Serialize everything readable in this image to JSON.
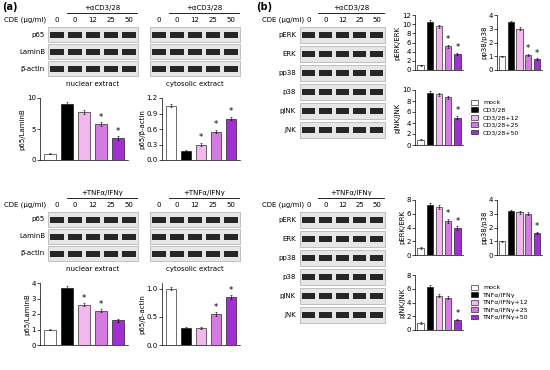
{
  "figure": {
    "panels": [
      {
        "label": "(a)",
        "groups": [
          {
            "treatment": "+αCD3/28",
            "dose_label": "CDE (μg/ml)",
            "rows": [
              "p65",
              "LaminB",
              "β-actin"
            ],
            "blots": [
              {
                "extract": "nuclear extract",
                "lanes": [
                  0,
                  0,
                  12,
                  25,
                  50
                ]
              },
              {
                "extract": "cytosolic extract",
                "lanes": [
                  0,
                  0,
                  12,
                  25,
                  50
                ]
              }
            ]
          },
          {
            "treatment": "+TNFα/IFNγ",
            "dose_label": "CDE (μg/ml)",
            "rows": [
              "p65",
              "LaminB",
              "β-actin"
            ],
            "blots": [
              {
                "extract": "nuclear extract",
                "lanes": [
                  0,
                  0,
                  12,
                  25,
                  50
                ]
              },
              {
                "extract": "cytosolic extract",
                "lanes": [
                  0,
                  0,
                  12,
                  25,
                  50
                ]
              }
            ]
          }
        ]
      },
      {
        "label": "(b)",
        "groups": [
          {
            "treatment": "+αCD3/28",
            "dose_label": "CDE (μg/ml)",
            "rows": [
              "pERK",
              "ERK",
              "pp38",
              "p38",
              "pJNK",
              "JNK"
            ],
            "blots": [
              {
                "lanes": [
                  0,
                  0,
                  12,
                  25,
                  50
                ]
              }
            ]
          },
          {
            "treatment": "+TNFα/IFNγ",
            "dose_label": "CDE (μg/ml)",
            "rows": [
              "pERK",
              "ERK",
              "pp38",
              "p38",
              "pJNK",
              "JNK"
            ],
            "blots": [
              {
                "lanes": [
                  0,
                  0,
                  12,
                  25,
                  50
                ]
              }
            ]
          }
        ]
      }
    ]
  },
  "chart_data": [
    {
      "type": "bar",
      "ylabel": "p65/LaminB",
      "categories": [
        null,
        null,
        null,
        null,
        null
      ],
      "values": [
        1,
        9,
        7.8,
        5.8,
        3.5
      ],
      "errors": [
        0.1,
        0.4,
        0.3,
        0.3,
        0.3
      ],
      "significance": [
        null,
        null,
        null,
        "*",
        "*"
      ],
      "colors": [
        "#ffffff",
        "#000000",
        "#f2b8ee",
        "#d57ae0",
        "#a030d0"
      ],
      "ylim": [
        0,
        10
      ],
      "yticks": [
        0,
        5,
        10
      ],
      "tick_labels": "y"
    },
    {
      "type": "bar",
      "ylabel": "p65/β-actin",
      "categories": [
        null,
        null,
        null,
        null,
        null
      ],
      "values": [
        1.05,
        0.18,
        0.3,
        0.55,
        0.8
      ],
      "errors": [
        0.03,
        0.02,
        0.03,
        0.03,
        0.03
      ],
      "significance": [
        null,
        null,
        "*",
        "*",
        "*"
      ],
      "colors": [
        "#ffffff",
        "#000000",
        "#f2b8ee",
        "#d57ae0",
        "#a030d0"
      ],
      "ylim": [
        0,
        1.2
      ],
      "yticks": [
        {
          "value": 0,
          "label": "0.0"
        },
        0.3,
        0.6,
        0.9,
        1.2
      ],
      "tick_labels": "y"
    },
    {
      "type": "bar",
      "ylabel": "p65/LaminB",
      "categories": [
        null,
        null,
        null,
        null,
        null
      ],
      "values": [
        1,
        3.7,
        2.6,
        2.2,
        1.6
      ],
      "errors": [
        0.05,
        0.1,
        0.1,
        0.1,
        0.1
      ],
      "significance": [
        null,
        null,
        "*",
        "*",
        null
      ],
      "colors": [
        "#ffffff",
        "#000000",
        "#f2b8ee",
        "#d57ae0",
        "#a030d0"
      ],
      "ylim": [
        0,
        4
      ],
      "yticks": [
        0,
        1,
        2,
        3,
        4
      ],
      "tick_labels": "y"
    },
    {
      "type": "bar",
      "ylabel": "p65/β-actin",
      "categories": [
        null,
        null,
        null,
        null,
        null
      ],
      "values": [
        1.0,
        0.3,
        0.3,
        0.55,
        0.85
      ],
      "errors": [
        0.03,
        0.02,
        0.02,
        0.03,
        0.03
      ],
      "significance": [
        null,
        null,
        null,
        "*",
        "*"
      ],
      "colors": [
        "#ffffff",
        "#000000",
        "#f2b8ee",
        "#d57ae0",
        "#a030d0"
      ],
      "ylim": [
        0,
        1.1
      ],
      "yticks": [
        {
          "value": 0,
          "label": "0.0"
        },
        0.5,
        {
          "value": 1,
          "label": "1.0"
        }
      ],
      "tick_labels": "y"
    },
    {
      "type": "bar",
      "ylabel": "pERK/ERK",
      "categories": [
        null,
        null,
        null,
        null,
        null
      ],
      "values": [
        1,
        10.5,
        9.5,
        5.2,
        3.5
      ],
      "errors": [
        0.1,
        0.4,
        0.3,
        0.3,
        0.3
      ],
      "significance": [
        null,
        null,
        null,
        "*",
        "*"
      ],
      "colors": [
        "#ffffff",
        "#000000",
        "#f2b8ee",
        "#d57ae0",
        "#a030d0"
      ],
      "ylim": [
        0,
        12
      ],
      "yticks": [
        0,
        2,
        4,
        6,
        8,
        10,
        12
      ],
      "tick_labels": "y"
    },
    {
      "type": "bar",
      "ylabel": "pp38/p38",
      "categories": [
        null,
        null,
        null,
        null,
        null
      ],
      "values": [
        1,
        3.5,
        3.0,
        1.1,
        0.8
      ],
      "errors": [
        0.05,
        0.1,
        0.1,
        0.1,
        0.05
      ],
      "significance": [
        null,
        null,
        null,
        "*",
        "*"
      ],
      "colors": [
        "#ffffff",
        "#000000",
        "#f2b8ee",
        "#d57ae0",
        "#a030d0"
      ],
      "ylim": [
        0,
        4
      ],
      "yticks": [
        0,
        1,
        2,
        3,
        4
      ],
      "tick_labels": "y"
    },
    {
      "type": "bar",
      "ylabel": "pJNK/JNK",
      "categories": [
        null,
        null,
        null,
        null,
        null
      ],
      "values": [
        1,
        9.5,
        9.2,
        8.7,
        5.0
      ],
      "errors": [
        0.1,
        0.3,
        0.3,
        0.3,
        0.3
      ],
      "significance": [
        null,
        null,
        null,
        null,
        "*"
      ],
      "colors": [
        "#ffffff",
        "#000000",
        "#f2b8ee",
        "#d57ae0",
        "#a030d0"
      ],
      "ylim": [
        0,
        10
      ],
      "yticks": [
        0,
        2,
        4,
        6,
        8,
        10
      ],
      "tick_labels": "y",
      "legend": "center left",
      "legend_labels": [
        "mock",
        "CD3/28",
        "CD3/28+12",
        "CD3/28+25",
        "CD3/28+50"
      ]
    },
    {
      "type": "bar",
      "ylabel": "pERK/ERK",
      "categories": [
        null,
        null,
        null,
        null,
        null
      ],
      "values": [
        1,
        7.3,
        7.0,
        5.0,
        3.9
      ],
      "errors": [
        0.1,
        0.3,
        0.3,
        0.3,
        0.3
      ],
      "significance": [
        null,
        null,
        null,
        "*",
        "*"
      ],
      "colors": [
        "#ffffff",
        "#000000",
        "#f2b8ee",
        "#d57ae0",
        "#a030d0"
      ],
      "ylim": [
        0,
        8
      ],
      "yticks": [
        0,
        2,
        4,
        6,
        8
      ],
      "tick_labels": "y"
    },
    {
      "type": "bar",
      "ylabel": "pp38/p38",
      "categories": [
        null,
        null,
        null,
        null,
        null
      ],
      "values": [
        1,
        3.2,
        3.1,
        3.0,
        1.6
      ],
      "errors": [
        0.05,
        0.1,
        0.1,
        0.1,
        0.1
      ],
      "significance": [
        null,
        null,
        null,
        null,
        "*"
      ],
      "colors": [
        "#ffffff",
        "#000000",
        "#f2b8ee",
        "#d57ae0",
        "#a030d0"
      ],
      "ylim": [
        0,
        4
      ],
      "yticks": [
        0,
        1,
        2,
        3,
        4
      ],
      "tick_labels": "y"
    },
    {
      "type": "bar",
      "ylabel": "pJNK/JNK",
      "categories": [
        null,
        null,
        null,
        null,
        null
      ],
      "values": [
        1,
        6.3,
        5.0,
        4.7,
        1.5
      ],
      "errors": [
        0.1,
        0.2,
        0.2,
        0.2,
        0.1
      ],
      "significance": [
        null,
        null,
        null,
        null,
        "*"
      ],
      "colors": [
        "#ffffff",
        "#000000",
        "#f2b8ee",
        "#d57ae0",
        "#a030d0"
      ],
      "ylim": [
        0,
        8
      ],
      "yticks": [
        0,
        2,
        4,
        6,
        8
      ],
      "tick_labels": "y",
      "legend": "center left",
      "legend_labels": [
        "mock",
        "TNFα/IFNγ",
        "TNFα/IFNγ+12",
        "TNFα/IFNγ+25",
        "TNFα/IFNγ+50"
      ]
    }
  ]
}
